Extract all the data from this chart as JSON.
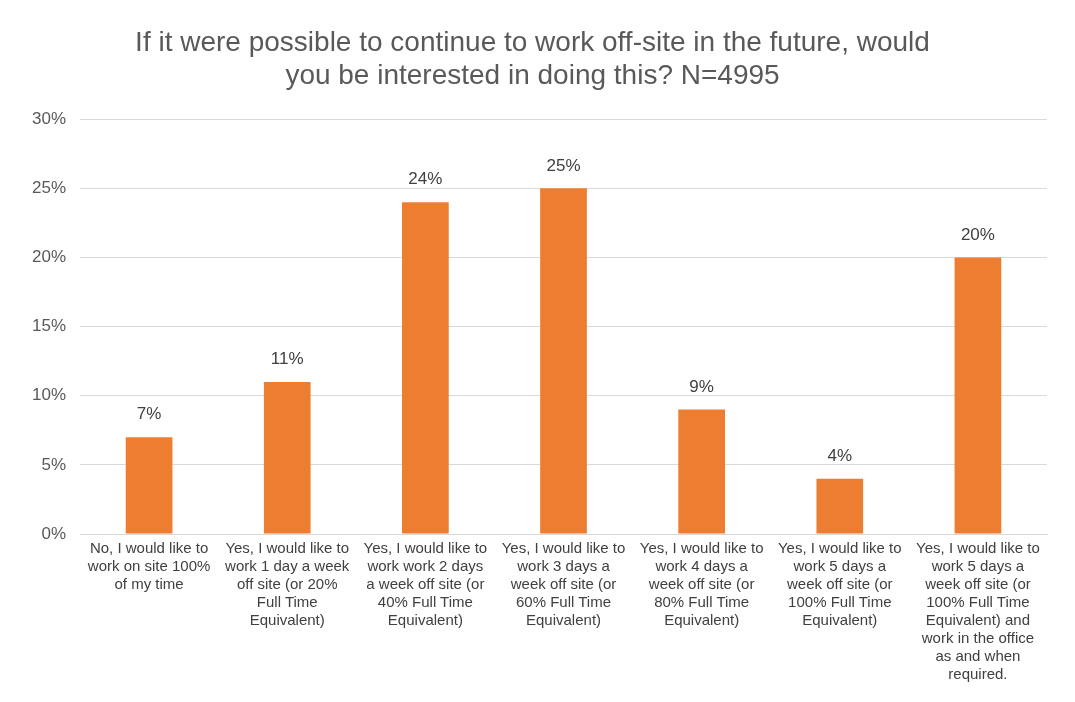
{
  "chart_data": {
    "type": "bar",
    "title": "If it were possible to continue to work off-site in the future, would you be interested in doing this? N=4995",
    "categories": [
      "No, I would like to work on site 100% of my time",
      "Yes, I would like to work 1 day a week off site (or 20% Full Time Equivalent)",
      "Yes, I would like to work work 2 days a week off site (or 40% Full Time Equivalent)",
      "Yes, I would like to work 3 days a week off site (or 60% Full Time Equivalent)",
      "Yes, I would like to work 4 days a week off site (or 80% Full Time Equivalent)",
      "Yes, I would like to work 5 days a week off site (or 100% Full Time Equivalent)",
      "Yes, I would like to work 5 days a week off site (or 100% Full Time Equivalent) and work in the office as and when required."
    ],
    "values": [
      7,
      11,
      24,
      25,
      9,
      4,
      20
    ],
    "value_labels": [
      "7%",
      "11%",
      "24%",
      "25%",
      "9%",
      "4%",
      "20%"
    ],
    "color": "#ed7d31",
    "ylim": [
      0,
      30
    ],
    "yticks": [
      {
        "value": 0,
        "label": "0%"
      },
      {
        "value": 5,
        "label": "5%"
      },
      {
        "value": 10,
        "label": "10%"
      },
      {
        "value": 15,
        "label": "15%"
      },
      {
        "value": 20,
        "label": "20%"
      },
      {
        "value": 25,
        "label": "25%"
      },
      {
        "value": 30,
        "label": "30%"
      }
    ],
    "grid": "y",
    "legend": false
  }
}
